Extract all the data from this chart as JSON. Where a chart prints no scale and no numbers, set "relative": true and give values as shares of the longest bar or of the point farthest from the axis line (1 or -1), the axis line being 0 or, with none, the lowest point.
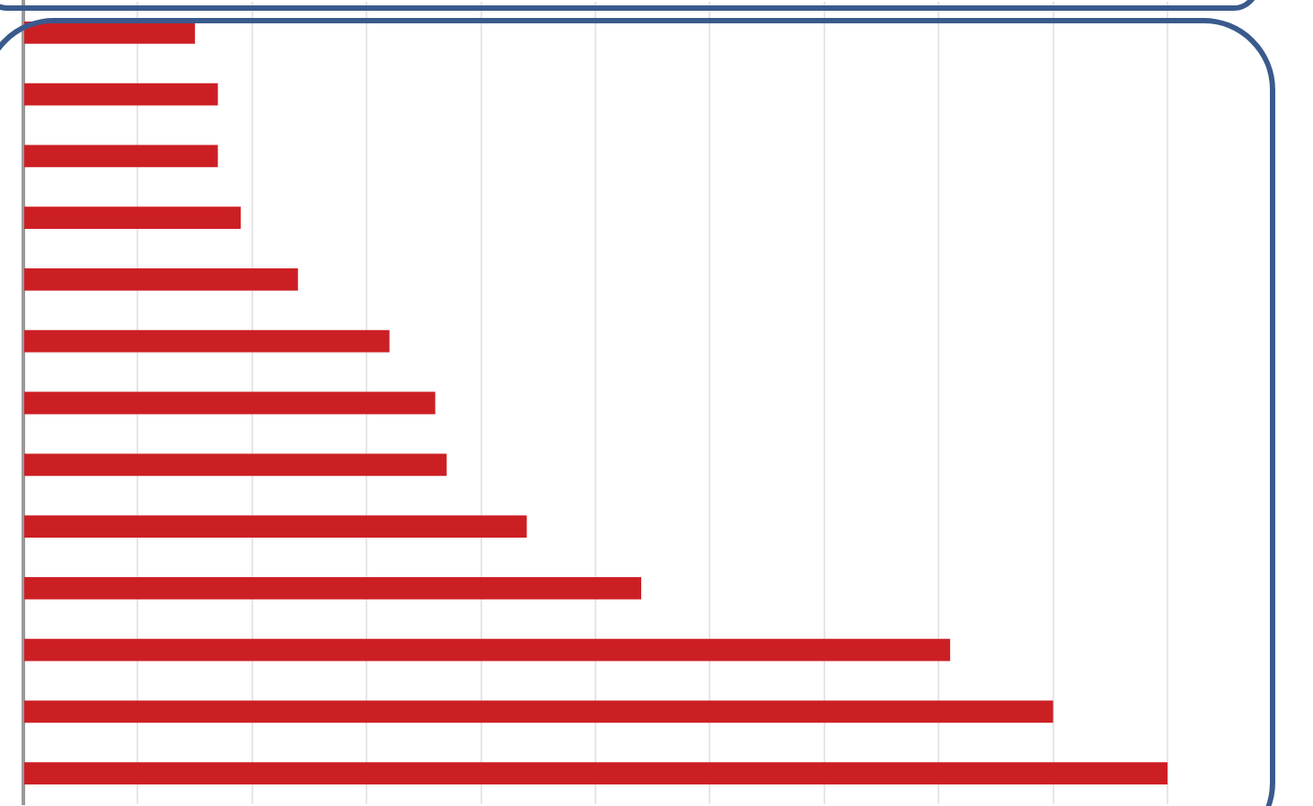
{
  "chart_data": {
    "type": "bar",
    "orientation": "horizontal",
    "relative": true,
    "grid": "x",
    "color": "#cc1f24",
    "categories": [
      null,
      null,
      null,
      null,
      null,
      null,
      null,
      null,
      null,
      null,
      null,
      null,
      null
    ],
    "values": [
      0.15,
      0.17,
      0.17,
      0.19,
      0.24,
      0.32,
      0.36,
      0.37,
      0.44,
      0.54,
      0.81,
      0.9,
      1
    ]
  }
}
